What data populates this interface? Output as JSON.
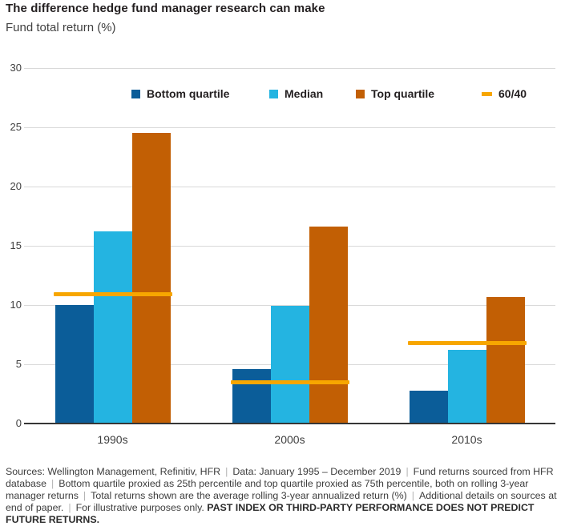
{
  "header": {
    "title": "The difference hedge fund manager research can make",
    "subtitle": "Fund total return (%)"
  },
  "colors": {
    "bottom_quartile": "#0B5D99",
    "median": "#24B4E1",
    "top_quartile": "#C25F04",
    "line_60_40": "#F7A600"
  },
  "chart_data": {
    "type": "bar",
    "title": "The difference hedge fund manager research can make",
    "subtitle": "Fund total return (%)",
    "categories": [
      "1990s",
      "2000s",
      "2010s"
    ],
    "series": [
      {
        "name": "Bottom quartile",
        "color_key": "bottom_quartile",
        "values": [
          10.0,
          4.6,
          2.8
        ]
      },
      {
        "name": "Median",
        "color_key": "median",
        "values": [
          16.2,
          9.9,
          6.2
        ]
      },
      {
        "name": "Top quartile",
        "color_key": "top_quartile",
        "values": [
          24.5,
          16.6,
          10.7
        ]
      }
    ],
    "overlay_line_series": {
      "name": "60/40",
      "color_key": "line_60_40",
      "values": [
        10.9,
        3.5,
        6.8
      ]
    },
    "xlabel": "",
    "ylabel": "Fund total return (%)",
    "ylim": [
      0,
      30
    ],
    "yticks": [
      0,
      5,
      10,
      15,
      20,
      25,
      30
    ],
    "grid": "horizontal",
    "legend_position": "top"
  },
  "legend": {
    "items": [
      {
        "label": "Bottom quartile",
        "swatch": "square",
        "color_key": "bottom_quartile"
      },
      {
        "label": "Median",
        "swatch": "square",
        "color_key": "median"
      },
      {
        "label": "Top quartile",
        "swatch": "square",
        "color_key": "top_quartile"
      },
      {
        "label": "60/40",
        "swatch": "dash",
        "color_key": "line_60_40"
      }
    ]
  },
  "footer": {
    "separator": "|",
    "segments": [
      {
        "text": "Sources: Wellington Management, Refinitiv, HFR"
      },
      {
        "text": "Data: January 1995 – December 2019"
      },
      {
        "text": "Fund returns sourced from HFR database"
      },
      {
        "text": "Bottom quartile proxied as 25th percentile and top quartile proxied as 75th percentile, both on rolling 3-year manager returns"
      },
      {
        "text": "Total returns shown are the average rolling 3-year annualized return (%)"
      },
      {
        "text": "Additional details on sources at end of paper."
      },
      {
        "text": "For illustrative purposes only. ",
        "bold_suffix": "PAST INDEX OR THIRD-PARTY PERFORMANCE DOES NOT PREDICT FUTURE RETURNS."
      }
    ]
  }
}
